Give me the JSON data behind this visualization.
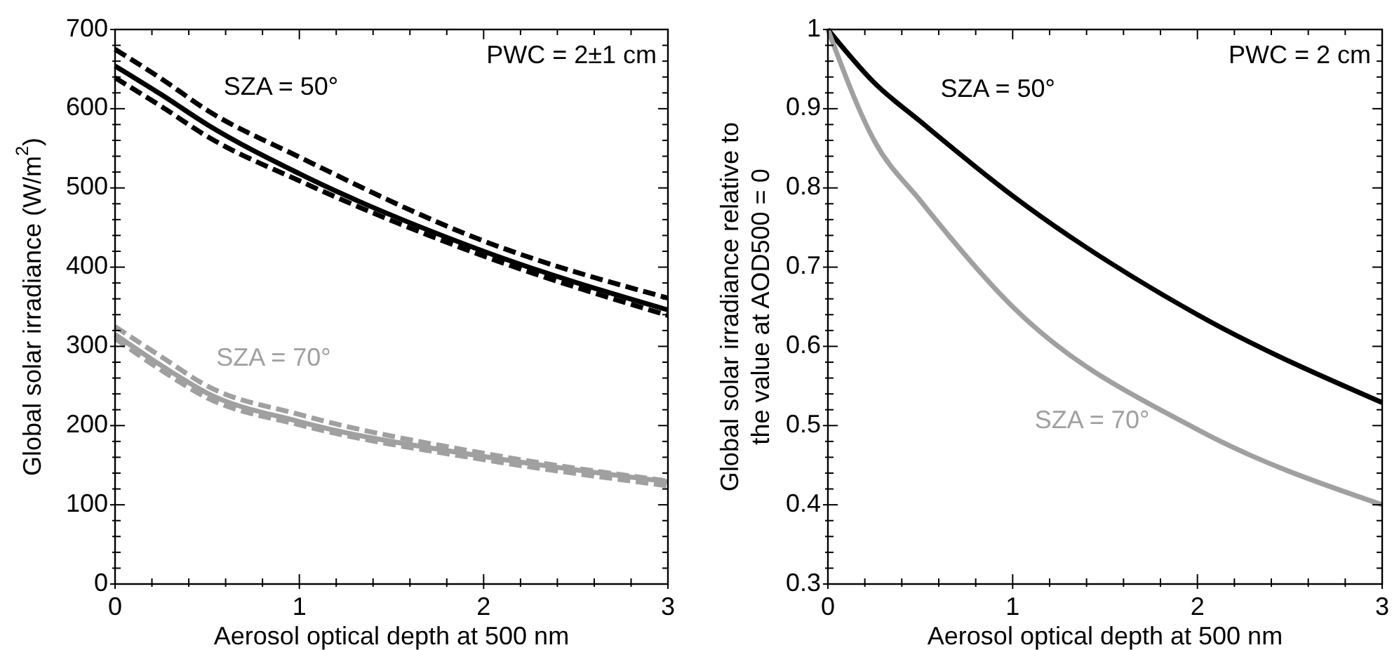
{
  "chart_data": [
    {
      "type": "line",
      "xlabel": "Aerosol optical depth at 500 nm",
      "ylabel": "Global solar irradiance (W/m$^{2}$)",
      "annotations": [
        "PWC = 2±1 cm"
      ],
      "xlim": [
        0,
        3
      ],
      "ylim": [
        0,
        700
      ],
      "xticks": [
        0,
        1,
        2,
        3,
        {
          "value": 0.2,
          "label": null
        },
        {
          "value": 0.4,
          "label": null
        },
        {
          "value": 0.6,
          "label": null
        },
        {
          "value": 0.8,
          "label": null
        },
        {
          "value": 1.2,
          "label": null
        },
        {
          "value": 1.4,
          "label": null
        },
        {
          "value": 1.6,
          "label": null
        },
        {
          "value": 1.8,
          "label": null
        },
        {
          "value": 2.2,
          "label": null
        },
        {
          "value": 2.4,
          "label": null
        },
        {
          "value": 2.6,
          "label": null
        },
        {
          "value": 2.8,
          "label": null
        }
      ],
      "yticks": [
        0,
        100,
        200,
        300,
        400,
        500,
        600,
        700,
        {
          "value": 20,
          "label": null
        },
        {
          "value": 40,
          "label": null
        },
        {
          "value": 60,
          "label": null
        },
        {
          "value": 80,
          "label": null
        },
        {
          "value": 120,
          "label": null
        },
        {
          "value": 140,
          "label": null
        },
        {
          "value": 160,
          "label": null
        },
        {
          "value": 180,
          "label": null
        },
        {
          "value": 220,
          "label": null
        },
        {
          "value": 240,
          "label": null
        },
        {
          "value": 260,
          "label": null
        },
        {
          "value": 280,
          "label": null
        },
        {
          "value": 320,
          "label": null
        },
        {
          "value": 340,
          "label": null
        },
        {
          "value": 360,
          "label": null
        },
        {
          "value": 380,
          "label": null
        },
        {
          "value": 420,
          "label": null
        },
        {
          "value": 440,
          "label": null
        },
        {
          "value": 460,
          "label": null
        },
        {
          "value": 480,
          "label": null
        },
        {
          "value": 520,
          "label": null
        },
        {
          "value": 540,
          "label": null
        },
        {
          "value": 560,
          "label": null
        },
        {
          "value": 580,
          "label": null
        },
        {
          "value": 620,
          "label": null
        },
        {
          "value": 640,
          "label": null
        },
        {
          "value": 660,
          "label": null
        },
        {
          "value": 680,
          "label": null
        }
      ],
      "grid": false,
      "marker": "none",
      "x": [
        0,
        0.25,
        0.5,
        1,
        2,
        3
      ],
      "series": [
        {
          "color": "#000000",
          "line_style": "dashed",
          "values": [
            675,
            638,
            598,
            539,
            433,
            361
          ]
        },
        {
          "color": "#000000",
          "line_style": "dashed",
          "values": [
            639,
            603,
            565,
            509,
            414,
            339
          ]
        },
        {
          "name": "SZA = 50°",
          "color": "#000000",
          "line_style": "solid",
          "values": [
            654,
            618,
            580,
            518,
            420,
            346
          ]
        },
        {
          "color": "#a0a0a0",
          "line_style": "dashed",
          "values": [
            325,
            287,
            250,
            214,
            165,
            130
          ]
        },
        {
          "color": "#a0a0a0",
          "line_style": "dashed",
          "values": [
            310,
            270,
            235,
            201,
            157,
            124
          ]
        },
        {
          "name": "SZA = 70°",
          "color": "#a0a0a0",
          "line_style": "solid",
          "values": [
            315,
            276,
            241,
            205,
            161,
            129
          ]
        }
      ]
    },
    {
      "type": "line",
      "xlabel": "Aerosol optical depth at 500 nm",
      "ylabel": "Global solar irradiance relative to the value at AOD500 = 0",
      "annotations": [
        "PWC = 2 cm"
      ],
      "xlim": [
        0,
        3
      ],
      "ylim": [
        0.3,
        1
      ],
      "xticks": [
        0,
        1,
        2,
        3,
        {
          "value": 0.2,
          "label": null
        },
        {
          "value": 0.4,
          "label": null
        },
        {
          "value": 0.6,
          "label": null
        },
        {
          "value": 0.8,
          "label": null
        },
        {
          "value": 1.2,
          "label": null
        },
        {
          "value": 1.4,
          "label": null
        },
        {
          "value": 1.6,
          "label": null
        },
        {
          "value": 1.8,
          "label": null
        },
        {
          "value": 2.2,
          "label": null
        },
        {
          "value": 2.4,
          "label": null
        },
        {
          "value": 2.6,
          "label": null
        },
        {
          "value": 2.8,
          "label": null
        }
      ],
      "yticks": [
        0.3,
        0.4,
        0.5,
        0.6,
        0.7,
        0.8,
        0.9,
        1,
        {
          "value": 0.32,
          "label": null
        },
        {
          "value": 0.34,
          "label": null
        },
        {
          "value": 0.36,
          "label": null
        },
        {
          "value": 0.38,
          "label": null
        },
        {
          "value": 0.42,
          "label": null
        },
        {
          "value": 0.44,
          "label": null
        },
        {
          "value": 0.46,
          "label": null
        },
        {
          "value": 0.48,
          "label": null
        },
        {
          "value": 0.52,
          "label": null
        },
        {
          "value": 0.54,
          "label": null
        },
        {
          "value": 0.56,
          "label": null
        },
        {
          "value": 0.58,
          "label": null
        },
        {
          "value": 0.62,
          "label": null
        },
        {
          "value": 0.64,
          "label": null
        },
        {
          "value": 0.66,
          "label": null
        },
        {
          "value": 0.68,
          "label": null
        },
        {
          "value": 0.72,
          "label": null
        },
        {
          "value": 0.74,
          "label": null
        },
        {
          "value": 0.76,
          "label": null
        },
        {
          "value": 0.78,
          "label": null
        },
        {
          "value": 0.82,
          "label": null
        },
        {
          "value": 0.84,
          "label": null
        },
        {
          "value": 0.86,
          "label": null
        },
        {
          "value": 0.88,
          "label": null
        },
        {
          "value": 0.92,
          "label": null
        },
        {
          "value": 0.94,
          "label": null
        },
        {
          "value": 0.96,
          "label": null
        },
        {
          "value": 0.98,
          "label": null
        }
      ],
      "grid": false,
      "marker": "none",
      "x": [
        0,
        0.25,
        0.5,
        1,
        2,
        3
      ],
      "series": [
        {
          "name": "SZA = 50°",
          "color": "#000000",
          "line_style": "solid",
          "values": [
            1,
            0.933,
            0.884,
            0.79,
            0.64,
            0.529
          ]
        },
        {
          "name": "SZA = 70°",
          "color": "#a0a0a0",
          "line_style": "solid",
          "values": [
            1,
            0.86,
            0.784,
            0.65,
            0.495,
            0.4
          ]
        }
      ]
    }
  ]
}
